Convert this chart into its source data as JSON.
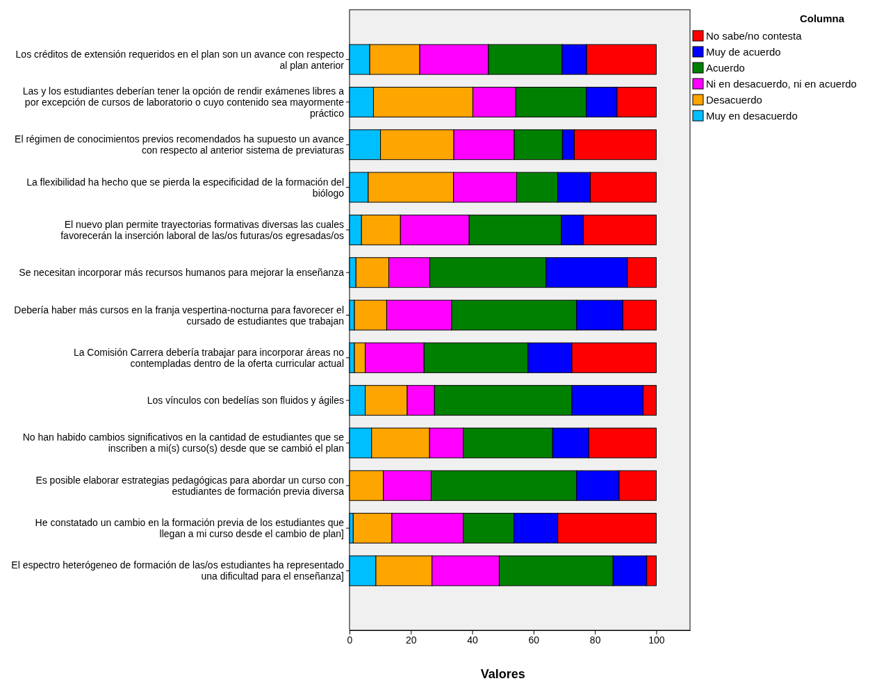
{
  "chart_data": {
    "type": "bar",
    "orientation": "horizontal",
    "stacked": true,
    "xlabel": "Valores",
    "legend_title": "Columna",
    "legend": "top right",
    "grid": false,
    "categories": [
      "Los créditos de extensión requeridos en el plan son un avance con respecto al plan anterior",
      "Las y los estudiantes deberían tener la opción de rendir exámenes libres a por excepción de cursos de laboratorio o cuyo contenido sea mayormente práctico",
      "El régimen de conocimientos previos recomendados ha supuesto un avance con respecto al anterior sistema de previaturas",
      "La flexibilidad ha hecho que se pierda la especificidad de la formación del biólogo",
      "El nuevo plan permite trayectorias formativas diversas las cuales favorecerán la inserción laboral de las/os futuras/os egresadas/os",
      "Se necesitan incorporar más recursos humanos para mejorar la enseñanza",
      "Debería haber más cursos en la franja vespertina-nocturna para favorecer el cursado de estudiantes que trabajan",
      "La Comisión Carrera debería trabajar para incorporar áreas no contempladas dentro de la oferta curricular actual",
      "Los vínculos con bedelías son fluidos y ágiles",
      "No han habido cambios significativos en la cantidad de estudiantes que se inscriben a mi(s) curso(s) desde que se cambió el plan",
      "Es posible elaborar estrategias pedagógicas para abordar un curso con estudiantes de formación previa diversa",
      "He constatado un cambio en la formación previa de los estudiantes que llegan a mi curso desde el cambio de plan]",
      "El espectro heterógeneo de formación de las/os estudiantes ha representado una dificultad para el enseñanza]"
    ],
    "xlim": [
      0,
      111
    ],
    "xticks": [
      0,
      20,
      40,
      60,
      80,
      100
    ],
    "series": [
      {
        "name": "Muy en desacuerdo",
        "color": "#00bfff",
        "values": [
          6.6,
          7.8,
          10.1,
          6.1,
          3.9,
          2.1,
          1.6,
          1.6,
          5.1,
          7.2,
          0,
          1.2,
          8.6
        ]
      },
      {
        "name": "Desacuerdo",
        "color": "#ffa500",
        "values": [
          16.3,
          32.4,
          23.9,
          27.8,
          12.7,
          10.7,
          10.5,
          3.5,
          13.7,
          18.9,
          11.0,
          12.6,
          18.3
        ]
      },
      {
        "name": "Ni en desacuerdo, ni en acuerdo",
        "color": "#ff00ff",
        "values": [
          22.4,
          14.0,
          19.7,
          20.6,
          22.4,
          13.4,
          21.2,
          19.2,
          8.9,
          11.0,
          15.6,
          23.3,
          21.9
        ]
      },
      {
        "name": "Acuerdo",
        "color": "#008000",
        "values": [
          24.0,
          23.0,
          15.7,
          13.4,
          30.1,
          37.9,
          40.7,
          33.9,
          44.8,
          29.1,
          47.4,
          16.5,
          37.1
        ]
      },
      {
        "name": "Muy de acuerdo",
        "color": "#0000ff",
        "values": [
          8.0,
          10.0,
          3.9,
          10.6,
          7.1,
          26.5,
          15.1,
          14.3,
          23.2,
          11.8,
          13.9,
          14.3,
          11.0
        ]
      },
      {
        "name": "No sabe/no contesta",
        "color": "#ff0000",
        "values": [
          22.7,
          12.8,
          26.7,
          21.5,
          23.8,
          9.4,
          10.9,
          27.5,
          4.3,
          22.0,
          12.1,
          32.1,
          3.1
        ]
      }
    ]
  }
}
